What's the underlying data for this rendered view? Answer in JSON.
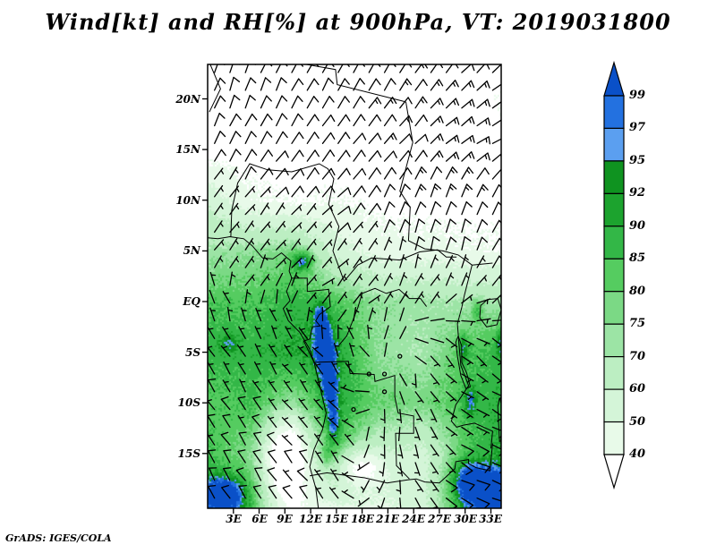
{
  "title": "Wind[kt] and RH[%] at 900hPa, VT: 2019031800",
  "credit": "GrADS: IGES/COLA",
  "axes": {
    "lat_ticks": [
      {
        "label": "20N",
        "lat": 20
      },
      {
        "label": "15N",
        "lat": 15
      },
      {
        "label": "10N",
        "lat": 10
      },
      {
        "label": "5N",
        "lat": 5
      },
      {
        "label": "EQ",
        "lat": 0
      },
      {
        "label": "5S",
        "lat": -5
      },
      {
        "label": "10S",
        "lat": -10
      },
      {
        "label": "15S",
        "lat": -15
      }
    ],
    "lon_ticks": [
      {
        "label": "3E",
        "lon": 3
      },
      {
        "label": "6E",
        "lon": 6
      },
      {
        "label": "9E",
        "lon": 9
      },
      {
        "label": "12E",
        "lon": 12
      },
      {
        "label": "15E",
        "lon": 15
      },
      {
        "label": "18E",
        "lon": 18
      },
      {
        "label": "21E",
        "lon": 21
      },
      {
        "label": "24E",
        "lon": 24
      },
      {
        "label": "27E",
        "lon": 27
      },
      {
        "label": "30E",
        "lon": 30
      },
      {
        "label": "33E",
        "lon": 33
      }
    ]
  },
  "colorbar": {
    "levels": [
      99,
      97,
      95,
      92,
      90,
      85,
      80,
      75,
      70,
      60,
      50,
      40
    ],
    "colors": [
      "#0a50c8",
      "#2371e0",
      "#5b9ff0",
      "#0f9320",
      "#1ca32e",
      "#33b747",
      "#55cc60",
      "#7bd985",
      "#9ce4a5",
      "#bceec2",
      "#d4f5d8",
      "#e8fae9",
      "#ffffff"
    ]
  },
  "chart_data": {
    "type": "heatmap",
    "title": "Wind[kt] and RH[%] at 900hPa, VT: 2019031800",
    "variable": "Relative humidity [%]",
    "overlay": "wind barbs [kt]",
    "pressure_level": "900hPa",
    "valid_time": "2019031800",
    "lon_range": [
      0,
      34.2
    ],
    "lat_range": [
      -20.4,
      23.4
    ],
    "legend_position": "right",
    "grid_lons": [
      0,
      5,
      10,
      15,
      20,
      25,
      30,
      35
    ],
    "grid_lats": [
      23.4,
      20,
      15,
      10,
      5,
      0,
      -5,
      -10,
      -15,
      -20.4
    ],
    "rh_values": [
      [
        32,
        32,
        32,
        32,
        32,
        32,
        32,
        38
      ],
      [
        33,
        33,
        33,
        33,
        33,
        33,
        34,
        40
      ],
      [
        34,
        34,
        34,
        35,
        35,
        35,
        35,
        36
      ],
      [
        58,
        42,
        38,
        40,
        36,
        35,
        35,
        36
      ],
      [
        72,
        74,
        78,
        55,
        45,
        44,
        42,
        40
      ],
      [
        84,
        84,
        88,
        84,
        74,
        72,
        70,
        72
      ],
      [
        88,
        88,
        91,
        93,
        74,
        70,
        84,
        88
      ],
      [
        82,
        86,
        76,
        90,
        80,
        78,
        85,
        90
      ],
      [
        86,
        76,
        46,
        84,
        62,
        56,
        82,
        92
      ],
      [
        92,
        86,
        40,
        48,
        48,
        55,
        90,
        95
      ]
    ],
    "rh_anomalies": [
      {
        "lon": 11.2,
        "lat": 4.0,
        "rx": 1.2,
        "ry": 1.0,
        "amp": 22
      },
      {
        "lon": 13.2,
        "lat": -1.8,
        "rx": 0.9,
        "ry": 1.8,
        "amp": 16
      },
      {
        "lon": 13.6,
        "lat": -4.8,
        "rx": 1.0,
        "ry": 2.2,
        "amp": 20
      },
      {
        "lon": 14.2,
        "lat": -8.5,
        "rx": 0.9,
        "ry": 2.0,
        "amp": 16
      },
      {
        "lon": 14.6,
        "lat": -12.0,
        "rx": 0.8,
        "ry": 2.0,
        "amp": 14
      },
      {
        "lon": 13.8,
        "lat": -15.3,
        "rx": 0.7,
        "ry": 1.3,
        "amp": 12
      },
      {
        "lon": 2.0,
        "lat": -19.0,
        "rx": 2.4,
        "ry": 1.8,
        "amp": 22
      },
      {
        "lon": 30.5,
        "lat": -17.8,
        "rx": 2.6,
        "ry": 2.2,
        "amp": 20
      },
      {
        "lon": 33.6,
        "lat": -19.0,
        "rx": 2.0,
        "ry": 2.0,
        "amp": 18
      },
      {
        "lon": 29.8,
        "lat": -4.5,
        "rx": 0.6,
        "ry": 1.6,
        "amp": 12
      },
      {
        "lon": 30.6,
        "lat": -9.8,
        "rx": 0.8,
        "ry": 1.6,
        "amp": 12
      },
      {
        "lon": 31.4,
        "lat": -0.8,
        "rx": 0.7,
        "ry": 1.2,
        "amp": 12
      },
      {
        "lon": 34.2,
        "lat": -3.8,
        "rx": 0.7,
        "ry": 1.5,
        "amp": 12
      },
      {
        "lon": 2.5,
        "lat": -4.0,
        "rx": 1.2,
        "ry": 1.0,
        "amp": 8
      },
      {
        "lon": 17.8,
        "lat": -16.3,
        "rx": 2.6,
        "ry": 1.8,
        "amp": -30
      },
      {
        "lon": 9.0,
        "lat": -15.5,
        "rx": 2.2,
        "ry": 3.6,
        "amp": -40
      }
    ],
    "wind_uv": [
      [
        [
          -3,
          -10
        ],
        [
          -4,
          -10
        ],
        [
          -5,
          -10
        ],
        [
          -5,
          -10
        ],
        [
          -6,
          -10
        ],
        [
          -7,
          -10
        ],
        [
          -8,
          -9
        ],
        [
          -9,
          -8
        ]
      ],
      [
        [
          -3,
          -9
        ],
        [
          -4,
          -9
        ],
        [
          -5,
          -9
        ],
        [
          -6,
          -10
        ],
        [
          -7,
          -10
        ],
        [
          -8,
          -10
        ],
        [
          -10,
          -9
        ],
        [
          -11,
          -8
        ]
      ],
      [
        [
          -4,
          -8
        ],
        [
          -5,
          -8
        ],
        [
          -6,
          -8
        ],
        [
          -7,
          -9
        ],
        [
          -8,
          -9
        ],
        [
          -9,
          -9
        ],
        [
          -12,
          -8
        ],
        [
          -13,
          -7
        ]
      ],
      [
        [
          -3,
          -5
        ],
        [
          -4,
          -5
        ],
        [
          -5,
          -6
        ],
        [
          -6,
          -6
        ],
        [
          -5,
          -9
        ],
        [
          -4,
          -12
        ],
        [
          -4,
          -13
        ],
        [
          -5,
          -11
        ]
      ],
      [
        [
          -2,
          -3
        ],
        [
          -3,
          -3
        ],
        [
          -3,
          -4
        ],
        [
          -4,
          -4
        ],
        [
          -3,
          -6
        ],
        [
          -2,
          -9
        ],
        [
          -3,
          -9
        ],
        [
          -4,
          -7
        ]
      ],
      [
        [
          1,
          -3
        ],
        [
          0,
          -3
        ],
        [
          -1,
          -2
        ],
        [
          -2,
          -2
        ],
        [
          -2,
          -3
        ],
        [
          -2,
          -3
        ],
        [
          -3,
          -2
        ],
        [
          -4,
          -3
        ]
      ],
      [
        [
          3,
          -5
        ],
        [
          3,
          -5
        ],
        [
          3,
          -4
        ],
        [
          2,
          -3
        ],
        [
          1,
          -2
        ],
        [
          -1,
          2
        ],
        [
          -4,
          3
        ],
        [
          -5,
          4
        ]
      ],
      [
        [
          4,
          -6
        ],
        [
          4,
          -6
        ],
        [
          4,
          -5
        ],
        [
          3,
          -4
        ],
        [
          0,
          2
        ],
        [
          -2,
          3
        ],
        [
          -5,
          3
        ],
        [
          -6,
          4
        ]
      ],
      [
        [
          4,
          -7
        ],
        [
          5,
          -7
        ],
        [
          5,
          -6
        ],
        [
          4,
          -5
        ],
        [
          1,
          4
        ],
        [
          -2,
          4
        ],
        [
          -7,
          4
        ],
        [
          -9,
          4
        ]
      ],
      [
        [
          4,
          -8
        ],
        [
          5,
          -8
        ],
        [
          5,
          -7
        ],
        [
          4,
          -6
        ],
        [
          2,
          5
        ],
        [
          -3,
          5
        ],
        [
          -8,
          3
        ],
        [
          -10,
          3
        ]
      ]
    ],
    "barb_grid": {
      "lon0": 0.8,
      "dlon": 1.8,
      "ncols": 19,
      "lat0": 22.6,
      "dlat": 1.75,
      "nrows": 25
    },
    "map_lines": [
      {
        "name": "coastline-west-africa",
        "points": [
          [
            -0.2,
            6.3
          ],
          [
            1.2,
            6.2
          ],
          [
            2.6,
            6.4
          ],
          [
            4.2,
            6.2
          ],
          [
            5.2,
            5.5
          ],
          [
            6.4,
            4.3
          ],
          [
            7.6,
            4.2
          ],
          [
            8.6,
            4.8
          ],
          [
            9.7,
            4.0
          ],
          [
            9.5,
            3.0
          ],
          [
            9.8,
            2.3
          ],
          [
            9.2,
            1.0
          ],
          [
            9.6,
            0.1
          ],
          [
            8.8,
            -0.7
          ],
          [
            9.4,
            -1.9
          ],
          [
            10.7,
            -3.0
          ],
          [
            11.9,
            -4.7
          ],
          [
            12.4,
            -6.0
          ],
          [
            13.2,
            -8.8
          ],
          [
            13.8,
            -11.0
          ],
          [
            13.4,
            -12.6
          ],
          [
            12.4,
            -14.6
          ],
          [
            11.9,
            -16.3
          ],
          [
            12.6,
            -18.4
          ],
          [
            12.9,
            -20.4
          ]
        ]
      },
      {
        "name": "border-mali-top-left",
        "points": [
          [
            0.3,
            23.4
          ],
          [
            1.5,
            21.0
          ],
          [
            0.2,
            18.7
          ]
        ]
      },
      {
        "name": "border-sahara-diagonal",
        "points": [
          [
            11.5,
            23.4
          ],
          [
            14.9,
            22.9
          ],
          [
            15.1,
            21.4
          ],
          [
            23.1,
            19.7
          ]
        ]
      },
      {
        "name": "border-niger-nigeria-cameroon",
        "points": [
          [
            2.7,
            6.4
          ],
          [
            2.8,
            9.0
          ],
          [
            3.5,
            11.7
          ],
          [
            4.9,
            13.6
          ],
          [
            7.0,
            13.0
          ],
          [
            9.8,
            12.8
          ],
          [
            13.0,
            13.6
          ],
          [
            14.0,
            13.1
          ],
          [
            14.7,
            12.1
          ],
          [
            14.1,
            9.6
          ],
          [
            15.3,
            7.4
          ],
          [
            14.6,
            5.0
          ],
          [
            15.9,
            2.0
          ]
        ]
      },
      {
        "name": "border-chad-sudan-car",
        "points": [
          [
            23.1,
            19.7
          ],
          [
            23.9,
            15.7
          ],
          [
            22.9,
            12.5
          ],
          [
            22.4,
            10.9
          ],
          [
            23.6,
            9.3
          ],
          [
            23.4,
            6.0
          ],
          [
            25.3,
            5.2
          ],
          [
            27.4,
            5.0
          ],
          [
            29.2,
            4.6
          ],
          [
            30.8,
            3.6
          ],
          [
            33.2,
            3.8
          ]
        ]
      },
      {
        "name": "border-car-drc",
        "points": [
          [
            15.9,
            2.0
          ],
          [
            17.5,
            3.6
          ],
          [
            19.1,
            4.3
          ],
          [
            22.4,
            4.1
          ],
          [
            24.7,
            4.9
          ],
          [
            26.8,
            5.1
          ],
          [
            27.8,
            4.4
          ],
          [
            29.0,
            4.4
          ]
        ]
      },
      {
        "name": "border-congo-gabon",
        "points": [
          [
            9.7,
            2.3
          ],
          [
            11.6,
            2.3
          ],
          [
            11.6,
            1.0
          ],
          [
            14.1,
            1.2
          ],
          [
            14.3,
            -0.5
          ],
          [
            13.0,
            -1.3
          ],
          [
            12.6,
            -1.9
          ],
          [
            13.1,
            -2.4
          ],
          [
            12.2,
            -2.5
          ],
          [
            11.9,
            -3.7
          ],
          [
            11.2,
            -3.9
          ],
          [
            12.4,
            -6.0
          ]
        ]
      },
      {
        "name": "river-congo-border",
        "points": [
          [
            15.3,
            -4.3
          ],
          [
            16.2,
            -3.4
          ],
          [
            16.9,
            -1.9
          ],
          [
            17.5,
            -0.6
          ],
          [
            18.0,
            0.8
          ],
          [
            19.5,
            1.3
          ],
          [
            20.8,
            0.8
          ],
          [
            22.3,
            1.2
          ],
          [
            23.5,
            0.3
          ],
          [
            24.8,
            0.3
          ],
          [
            25.5,
            -0.5
          ]
        ]
      },
      {
        "name": "border-drc-angola-zambia",
        "points": [
          [
            12.4,
            -6.0
          ],
          [
            16.4,
            -5.9
          ],
          [
            16.6,
            -7.1
          ],
          [
            19.4,
            -7.2
          ],
          [
            19.5,
            -7.9
          ],
          [
            21.8,
            -7.3
          ],
          [
            21.8,
            -9.4
          ],
          [
            22.2,
            -11.0
          ],
          [
            24.0,
            -11.3
          ],
          [
            24.0,
            -13.0
          ],
          [
            21.9,
            -13.0
          ],
          [
            22.0,
            -16.2
          ],
          [
            23.5,
            -17.5
          ]
        ]
      },
      {
        "name": "border-zambia-zimbabwe",
        "points": [
          [
            11.9,
            -17.2
          ],
          [
            13.9,
            -16.9
          ],
          [
            18.3,
            -17.4
          ],
          [
            20.9,
            -17.9
          ],
          [
            23.3,
            -17.6
          ],
          [
            24.3,
            -17.5
          ],
          [
            25.3,
            -17.8
          ],
          [
            27.0,
            -17.9
          ],
          [
            28.8,
            -16.5
          ],
          [
            28.9,
            -15.8
          ],
          [
            30.4,
            -15.6
          ],
          [
            30.4,
            -16.0
          ],
          [
            31.3,
            -16.4
          ],
          [
            32.9,
            -16.7
          ],
          [
            33.2,
            -14.0
          ]
        ]
      },
      {
        "name": "border-east-rift",
        "points": [
          [
            30.8,
            3.6
          ],
          [
            29.9,
            0.6
          ],
          [
            29.6,
            -0.6
          ],
          [
            29.1,
            -2.2
          ],
          [
            29.3,
            -4.4
          ],
          [
            29.5,
            -6.3
          ],
          [
            30.4,
            -8.3
          ],
          [
            28.9,
            -10.2
          ],
          [
            28.4,
            -11.8
          ],
          [
            29.0,
            -12.4
          ],
          [
            29.8,
            -12.2
          ],
          [
            31.1,
            -12.0
          ],
          [
            33.2,
            -12.8
          ],
          [
            33.0,
            -14.5
          ]
        ]
      },
      {
        "name": "lake-victoria",
        "points": [
          [
            31.8,
            -0.4
          ],
          [
            32.6,
            0.2
          ],
          [
            33.8,
            0.3
          ],
          [
            34.2,
            -0.8
          ],
          [
            33.7,
            -2.3
          ],
          [
            32.5,
            -2.5
          ],
          [
            31.7,
            -1.6
          ],
          [
            31.8,
            -0.4
          ]
        ]
      },
      {
        "name": "lake-tanganyika",
        "points": [
          [
            29.2,
            -3.4
          ],
          [
            29.6,
            -4.4
          ],
          [
            29.6,
            -6.0
          ],
          [
            30.2,
            -7.1
          ],
          [
            30.6,
            -8.4
          ],
          [
            30.1,
            -8.6
          ],
          [
            29.5,
            -7.3
          ],
          [
            29.1,
            -5.4
          ],
          [
            28.9,
            -4.0
          ],
          [
            29.2,
            -3.4
          ]
        ]
      },
      {
        "name": "lake-malawi",
        "points": [
          [
            34.0,
            -9.5
          ],
          [
            34.4,
            -10.6
          ],
          [
            34.3,
            -12.2
          ],
          [
            34.5,
            -13.6
          ],
          [
            34.0,
            -13.8
          ],
          [
            33.9,
            -12.0
          ],
          [
            33.8,
            -10.4
          ],
          [
            34.0,
            -9.5
          ]
        ]
      }
    ]
  }
}
